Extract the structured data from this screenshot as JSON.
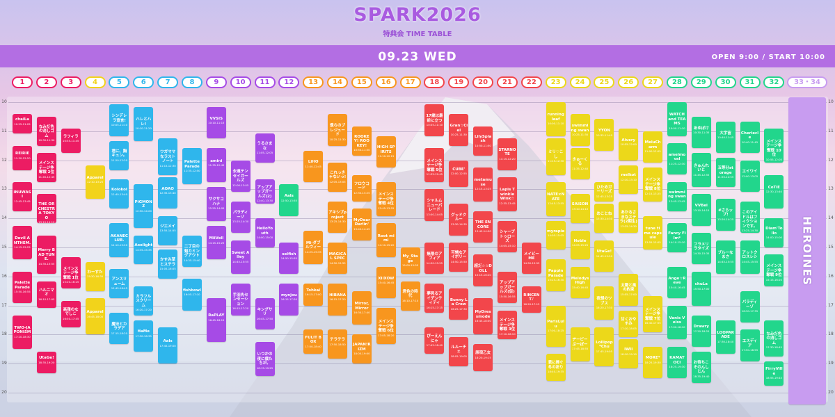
{
  "header": {
    "title": "SPARK2026",
    "subtitle": "特典会 TIME TABLE",
    "date": "09.23 WED",
    "open": "OPEN 9:00 / START 10:00"
  },
  "hours": [
    10,
    11,
    12,
    13,
    14,
    15,
    16,
    17,
    18,
    19,
    20
  ],
  "columns": [
    {
      "label": "1",
      "color": "#ec1c63",
      "slots": [
        {
          "name": "chaiLa",
          "time": "10:25-11:05"
        },
        {
          "name": "REIRIE",
          "time": "11:30-12:20"
        },
        {
          "name": "INUWASI",
          "time": "12:45-13:45"
        },
        {
          "name": "Devil ANTHEM.",
          "time": "14:15-15:25"
        },
        {
          "name": "Palette Parade",
          "time": "15:50-16:55"
        },
        {
          "name": "TWO-JAPONISM",
          "time": "17:20-18:30"
        }
      ]
    },
    {
      "label": "2",
      "color": "#ec1c63",
      "slots": [
        {
          "name": "なみだ色の消しゴム",
          "time": "10:30-11:30"
        },
        {
          "name": "メインステージ争奪戦 2位",
          "time": "11:45-12:45"
        },
        {
          "name": "THE ORCHESTRA TOKYO",
          "time": "13:10-14:10"
        },
        {
          "name": "Merry BAD TUNE.",
          "time": "14:35-15:55"
        },
        {
          "name": "ハルニマオ",
          "time": "16:10-17:05"
        },
        {
          "name": "UtaGe!",
          "time": "18:35-19:20"
        }
      ]
    },
    {
      "label": "3",
      "color": "#ec1c63",
      "slots": [
        {
          "name": "ラフィラ",
          "time": "10:55-11:45"
        },
        {
          "name": "メインステージ争奪戦 1位",
          "time": "15:20-16:25"
        },
        {
          "name": "高嶺のなでしこ",
          "time": "16:50-17:45"
        }
      ]
    },
    {
      "label": "4",
      "color": "#f2d31b",
      "slots": [
        {
          "name": "Apparel",
          "time": "12:10-13:20"
        },
        {
          "name": "わーすた",
          "time": "15:30-16:30"
        },
        {
          "name": "Apparel",
          "time": "16:45-18:00"
        }
      ]
    },
    {
      "label": "5",
      "color": "#2fb6ec",
      "slots": [
        {
          "name": "シンデレラ宣言!",
          "time": "10:05-11:10"
        },
        {
          "name": "君に、胸キュン。",
          "time": "11:20-12:20"
        },
        {
          "name": "Kolokol",
          "time": "12:40-13:40"
        },
        {
          "name": "AKANECLUB.",
          "time": "14:10-15:20"
        },
        {
          "name": "アンスリューム",
          "time": "15:45-16:45"
        },
        {
          "name": "魔法とカラデア",
          "time": "17:15-18:20"
        }
      ]
    },
    {
      "label": "6",
      "color": "#2fb6ec",
      "slots": [
        {
          "name": "ハレとハレ!",
          "time": "10:10-11:20"
        },
        {
          "name": "PiGMONZ",
          "time": "12:50-14:20"
        },
        {
          "name": "Axelight",
          "time": "14:35-15:35"
        },
        {
          "name": "カラフルスクリーム",
          "time": "16:20-17:20"
        },
        {
          "name": "HaMe",
          "time": "17:30-18:35"
        }
      ]
    },
    {
      "label": "7",
      "color": "#2fb6ec",
      "slots": [
        {
          "name": "ワガママなラストノート",
          "time": "11:15-12:30"
        },
        {
          "name": "AOAO",
          "time": "12:35-13:40"
        },
        {
          "name": "ジエメイ",
          "time": "13:55-14:55"
        },
        {
          "name": "かすみ草とステラ",
          "time": "15:05-16:05"
        },
        {
          "name": "Aals",
          "time": "17:45-19:00"
        }
      ]
    },
    {
      "label": "8",
      "color": "#2fb6ec",
      "slots": [
        {
          "name": "Palette Parade",
          "time": "11:35-12:50"
        },
        {
          "name": "二丁目の魁カミングアウト",
          "time": "14:35-15:40"
        },
        {
          "name": "fishbowl",
          "time": "16:05-17:10"
        }
      ]
    },
    {
      "label": "9",
      "color": "#a64be6",
      "slots": [
        {
          "name": "VVSIS",
          "time": "10:10-11:15"
        },
        {
          "name": "amini",
          "time": "11:35-12:45"
        },
        {
          "name": "サクサコハナ",
          "time": "12:55-14:05"
        },
        {
          "name": "MiiVell",
          "time": "14:15-15:25"
        },
        {
          "name": "RaPLAY",
          "time": "16:45-18:15"
        }
      ]
    },
    {
      "label": "10",
      "color": "#a64be6",
      "slots": [
        {
          "name": "永遠テンセイガールズ",
          "time": "12:00-13:05"
        },
        {
          "name": "パラディーゾ",
          "time": "13:25-14:30"
        },
        {
          "name": "Sweet Alley",
          "time": "14:45-15:55"
        },
        {
          "name": "手羽先センセーション",
          "time": "16:15-17:20"
        }
      ]
    },
    {
      "label": "11",
      "color": "#a64be6",
      "slots": [
        {
          "name": "うるさまな",
          "time": "11:05-12:05"
        },
        {
          "name": "アップアップガールズ(2)",
          "time": "12:40-13:30"
        },
        {
          "name": "HelloYouth",
          "time": "14:00-15:00"
        },
        {
          "name": "キングサリ",
          "time": "16:45-17:50"
        },
        {
          "name": "いつかの夜に僕たちが。",
          "time": "18:15-19:25"
        }
      ]
    },
    {
      "label": "12",
      "color": "#a64be6",
      "slots": [
        {
          "name": "Aals",
          "time": "12:50-13:55",
          "color": "#22d68c"
        },
        {
          "name": "selfish",
          "time": "14:50-15:55"
        },
        {
          "name": "mynjou",
          "time": "16:15-17:20"
        }
      ]
    },
    {
      "label": "13",
      "color": "#f8961e",
      "slots": [
        {
          "name": "LiHO",
          "time": "11:40-12:45"
        },
        {
          "name": "Mi-ダブルウィー",
          "time": "14:25-15:35"
        },
        {
          "name": "Tohkai",
          "time": "16:15-17:00"
        },
        {
          "name": "FULIT BOX",
          "time": "17:50-18:40"
        }
      ]
    },
    {
      "label": "14",
      "color": "#f8961e",
      "slots": [
        {
          "name": "僕らのプレジュード",
          "time": "10:25-11:30"
        },
        {
          "name": "これっきゃないっ!",
          "time": "12:05-13:05"
        },
        {
          "name": "アキシブproject",
          "time": "13:25-14:30"
        },
        {
          "name": "MAGICAL SPEC",
          "time": "14:50-15:55"
        },
        {
          "name": "HIBANA",
          "time": "16:15-17:20"
        },
        {
          "name": "テラテラ",
          "time": "17:50-18:50"
        }
      ]
    },
    {
      "label": "15",
      "color": "#f8961e",
      "slots": [
        {
          "name": "ROOKEY! ROOKEY!",
          "time": "10:50-11:50"
        },
        {
          "name": "フロウコード",
          "time": "12:30-13:25"
        },
        {
          "name": "MyDearDarlin'",
          "time": "13:40-14:45"
        },
        {
          "name": "Mirror,Mirror",
          "time": "16:30-17:40"
        },
        {
          "name": "JAPAN!RIZM",
          "time": "18:00-19:00"
        }
      ]
    },
    {
      "label": "16",
      "color": "#f8961e",
      "slots": [
        {
          "name": "HIGH SPIRITS",
          "time": "11:10-12:15"
        },
        {
          "name": "メインステージ争奪戦 4位",
          "time": "12:45-13:55"
        },
        {
          "name": "Root mimi",
          "time": "14:10-15:20"
        },
        {
          "name": "XIIXOW",
          "time": "15:40-16:45"
        },
        {
          "name": "メインステージ争奪戦 6位",
          "time": "17:05-18:20"
        }
      ]
    },
    {
      "label": "17",
      "color": "#f8961e",
      "slots": [
        {
          "name": "My_Stage",
          "time": "15:00-15:55"
        },
        {
          "name": "君色の時代",
          "time": "16:10-17:10"
        }
      ]
    },
    {
      "label": "18",
      "color": "#f2464b",
      "slots": [
        {
          "name": "17歳は最前に立つ",
          "time": "10:05-11:10"
        },
        {
          "name": "メインステージ争奪戦 5位",
          "time": "11:35-12:45"
        },
        {
          "name": "シャルムニューパレード",
          "time": "13:00-14:05"
        },
        {
          "name": "無限のアフィア",
          "time": "14:50-15:55"
        },
        {
          "name": "夢見るアイデンティティ",
          "time": "16:15-17:15"
        },
        {
          "name": "ぴーえんにゃ",
          "time": "17:45-18:40"
        }
      ]
    },
    {
      "label": "19",
      "color": "#f2464b",
      "slots": [
        {
          "name": "Gran☆Ciel",
          "time": "10:25-11:30"
        },
        {
          "name": "CUBE'",
          "time": "12:00-12:55"
        },
        {
          "name": "グッドクルー",
          "time": "13:30-14:35"
        },
        {
          "name": "可憐なアイボリー",
          "time": "14:50-15:50"
        },
        {
          "name": "Bunny La Crew",
          "time": "16:25-17:30"
        },
        {
          "name": "ルルーチェ",
          "time": "18:05-19:05"
        }
      ]
    },
    {
      "label": "20",
      "color": "#f2464b",
      "slots": [
        {
          "name": "LilySplash",
          "time": "10:50-11:50"
        },
        {
          "name": "metamuse",
          "time": "12:15-13:25"
        },
        {
          "name": "THE ENCORE",
          "time": "13:45-14:50"
        },
        {
          "name": "超だ☆☆DOLL",
          "time": "15:15-16:20"
        },
        {
          "name": "MyDressmode",
          "time": "16:45-18:00"
        },
        {
          "name": "原宿乙女",
          "time": "18:20-19:15"
        }
      ]
    },
    {
      "label": "21",
      "color": "#f2464b",
      "slots": [
        {
          "name": "STARNOTE",
          "time": "11:15-12:20"
        },
        {
          "name": "Lapis Twinkle Wink☆",
          "time": "12:35-13:45"
        },
        {
          "name": "シャープトゥローズ",
          "time": "14:05-15:10"
        },
        {
          "name": "アップアップガールズ(仮)",
          "time": "15:50-16:55"
        },
        {
          "name": "メインステージ争奪戦 3位",
          "time": "17:10-18:10"
        }
      ]
    },
    {
      "label": "22",
      "color": "#f2464b",
      "slots": [
        {
          "name": "メイビーME",
          "time": "14:50-15:55"
        },
        {
          "name": "RINCENT♪",
          "time": "16:20-17:15"
        }
      ]
    },
    {
      "label": "23",
      "color": "#ecd81a",
      "slots": [
        {
          "name": "running leaf",
          "time": "10:00-11:10"
        },
        {
          "name": "ミリ♡こし",
          "time": "11:15-12:30"
        },
        {
          "name": "NATE×NATE",
          "time": "12:45-13:55"
        },
        {
          "name": "myrapie",
          "time": "14:05-15:05"
        },
        {
          "name": "Pappin Parade",
          "time": "15:25-16:30"
        },
        {
          "name": "ParisLulu",
          "time": "17:00-18:25"
        },
        {
          "name": "君に捧ぐ冬の祈り",
          "time": "18:40-19:35"
        }
      ]
    },
    {
      "label": "24",
      "color": "#ecd81a",
      "slots": [
        {
          "name": "swimming swan",
          "time": "10:25-11:30"
        },
        {
          "name": "きゅーくる",
          "time": "11:35-12:40"
        },
        {
          "name": "SAISON",
          "time": "13:10-14:10"
        },
        {
          "name": "Hoble",
          "time": "14:25-15:25"
        },
        {
          "name": "Melodys High",
          "time": "15:40-16:45"
        },
        {
          "name": "ヂーピーぷーぽー",
          "time": "17:45-18:55"
        }
      ]
    },
    {
      "label": "25",
      "color": "#ecd81a",
      "slots": [
        {
          "name": "YYON",
          "time": "10:35-11:40"
        },
        {
          "name": "ひためガーリーズ",
          "time": "12:45-13:25"
        },
        {
          "name": "めことね",
          "time": "13:30-14:30"
        },
        {
          "name": "UtaGe!",
          "time": "14:45-15:50"
        },
        {
          "name": "夜想のツブス",
          "time": "16:20-17:30"
        },
        {
          "name": "Lollipop*Chu",
          "time": "17:45-19:05"
        }
      ]
    },
    {
      "label": "26",
      "color": "#ecd81a",
      "slots": [
        {
          "name": "Aivery",
          "time": "10:55-12:00"
        },
        {
          "name": "melkot",
          "time": "12:10-13:10"
        },
        {
          "name": "あかるさまなステラ(2期生)",
          "time": "13:25-14:30"
        },
        {
          "name": "太陽と風の約束",
          "time": "15:55-17:00"
        },
        {
          "name": "甘くおやすみ",
          "time": "17:10-18:05"
        },
        {
          "name": "IWII",
          "time": "18:10-19:10"
        }
      ]
    },
    {
      "label": "27",
      "color": "#ecd81a",
      "slots": [
        {
          "name": "MeluCharm",
          "time": "11:00-12:05"
        },
        {
          "name": "メインステージ争奪戦 8位",
          "time": "12:15-13:25"
        },
        {
          "name": "tune time capsule",
          "time": "13:55-15:05"
        },
        {
          "name": "メインステージ争奪戦 7位",
          "time": "16:40-17:55"
        },
        {
          "name": "MORE*",
          "time": "18:25-19:30"
        }
      ]
    },
    {
      "label": "28",
      "color": "#22d68c",
      "slots": [
        {
          "name": "WATCH and TEAMS",
          "time": "10:00-11:10"
        },
        {
          "name": "ameimoval",
          "time": "11:25-12:30"
        },
        {
          "name": "swimming swan",
          "time": "12:45-13:45"
        },
        {
          "name": "Fancy Film*",
          "time": "14:10-15:10"
        },
        {
          "name": "Ange☆Reve",
          "time": "15:40-16:45"
        },
        {
          "name": "Vanis Veiss",
          "time": "17:00-18:10"
        },
        {
          "name": "KAMATOCI",
          "time": "18:25-19:30"
        }
      ]
    },
    {
      "label": "29",
      "color": "#22d68c",
      "slots": [
        {
          "name": "あゆぽけ",
          "time": "10:30-11:35"
        },
        {
          "name": "きゅんれいと",
          "time": "11:45-12:55"
        },
        {
          "name": "VVBel",
          "time": "13:10-14:15"
        },
        {
          "name": "フラメリラタイズ",
          "time": "14:30-15:35"
        },
        {
          "name": "chuLa",
          "time": "15:50-17:00"
        },
        {
          "name": "Drawry",
          "time": "17:20-18:25"
        },
        {
          "name": "お待ちこそのんしじん",
          "time": "18:35-19:40"
        }
      ]
    },
    {
      "label": "30",
      "color": "#22d68c",
      "slots": [
        {
          "name": "大宇宙",
          "time": "10:40-11:45"
        },
        {
          "name": "五等分storage",
          "time": "11:55-12:55"
        },
        {
          "name": "#さらップ!",
          "time": "13:20-14:25"
        },
        {
          "name": "ブルーなまさ",
          "time": "14:45-15:55"
        },
        {
          "name": "LOOPARADE",
          "time": "17:30-18:40"
        }
      ]
    },
    {
      "label": "31",
      "color": "#22d68c",
      "slots": [
        {
          "name": "Cheriecle",
          "time": "10:40-11:45"
        },
        {
          "name": "エイワイ",
          "time": "12:00-13:05"
        },
        {
          "name": "このアイドルはフィクションです。",
          "time": "13:25-14:30"
        },
        {
          "name": "アットクロスレシ",
          "time": "14:45-15:55"
        },
        {
          "name": "パラディーゾ",
          "time": "16:30-17:35"
        },
        {
          "name": "エスディア",
          "time": "17:50-18:55"
        }
      ]
    },
    {
      "label": "32",
      "color": "#22d68c",
      "slots": [
        {
          "name": "メインステージ争奪戦 10位",
          "time": "10:55-12:05"
        },
        {
          "name": "CoTiE",
          "time": "12:30-13:40"
        },
        {
          "name": "Diam'Tollo",
          "time": "14:00-15:00"
        },
        {
          "name": "メインステージ争奪戦 9位",
          "time": "15:15-16:20"
        },
        {
          "name": "なみだ色の消しゴム",
          "time": "17:30-18:45"
        },
        {
          "name": "FirryVille",
          "time": "18:55-19:45"
        }
      ]
    },
    {
      "label": "33・34",
      "color": "#c89cf0",
      "slots": [
        {
          "name": "HEROINES"
        }
      ]
    }
  ]
}
